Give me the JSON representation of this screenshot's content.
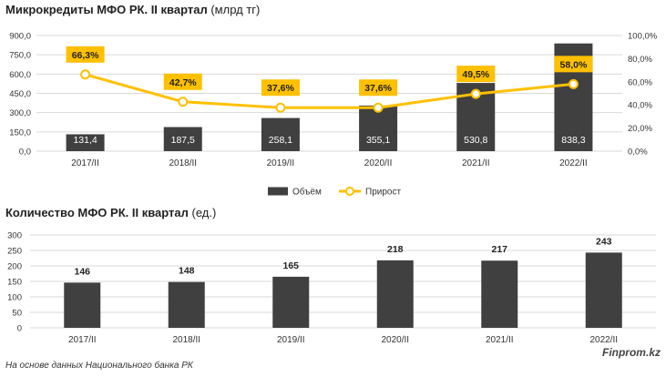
{
  "colors": {
    "bar": "#404040",
    "line": "#FFC000",
    "grid": "#d9d9d9",
    "label_box": "#FFC000"
  },
  "chart_data": [
    {
      "type": "bar+line",
      "title": "Микрокредиты МФО РК. II квартал",
      "title_unit": "(млрд тг)",
      "categories": [
        "2017/II",
        "2018/II",
        "2019/II",
        "2020/II",
        "2021/II",
        "2022/II"
      ],
      "series": [
        {
          "name": "Объём",
          "type": "bar",
          "axis": "left",
          "values": [
            131.4,
            187.5,
            258.1,
            355.1,
            530.8,
            838.3
          ],
          "labels": [
            "131,4",
            "187,5",
            "258,1",
            "355,1",
            "530,8",
            "838,3"
          ]
        },
        {
          "name": "Прирост",
          "type": "line",
          "axis": "right",
          "values": [
            66.3,
            42.7,
            37.6,
            37.6,
            49.5,
            58.0
          ],
          "labels": [
            "66,3%",
            "42,7%",
            "37,6%",
            "37,6%",
            "49,5%",
            "58,0%"
          ]
        }
      ],
      "y_left": {
        "min": 0,
        "max": 900,
        "ticks": [
          "0,0",
          "150,0",
          "300,0",
          "450,0",
          "600,0",
          "750,0",
          "900,0"
        ]
      },
      "y_right": {
        "min": 0,
        "max": 100,
        "ticks": [
          "0,0%",
          "20,0%",
          "40,0%",
          "60,0%",
          "80,0%",
          "100,0%"
        ]
      },
      "legend": [
        "Объём",
        "Прирост"
      ],
      "legend_position": "bottom",
      "grid": true
    },
    {
      "type": "bar",
      "title": "Количество МФО РК. II квартал",
      "title_unit": "(ед.)",
      "categories": [
        "2017/II",
        "2018/II",
        "2019/II",
        "2020/II",
        "2021/II",
        "2022/II"
      ],
      "values": [
        146,
        148,
        165,
        218,
        217,
        243
      ],
      "labels": [
        "146",
        "148",
        "165",
        "218",
        "217",
        "243"
      ],
      "y_left": {
        "min": 0,
        "max": 300,
        "ticks": [
          "0",
          "50",
          "100",
          "150",
          "200",
          "250",
          "300"
        ]
      },
      "grid": true
    }
  ],
  "footer": {
    "source": "На основе данных Национального банка РК",
    "brand": "Finprom.kz"
  }
}
